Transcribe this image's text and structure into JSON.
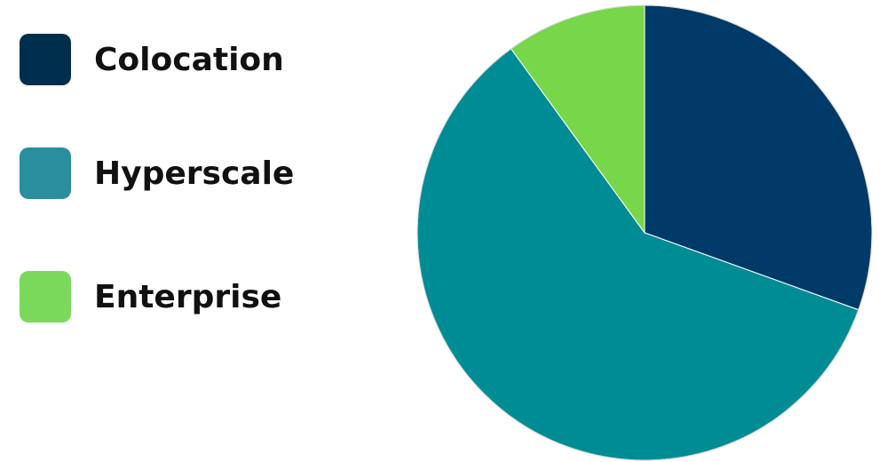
{
  "chart_data": {
    "type": "pie",
    "slices": [
      {
        "label": "Colocation",
        "value": 30.5,
        "color": "#003A68"
      },
      {
        "label": "Hyperscale",
        "value": 59.5,
        "color": "#008C95"
      },
      {
        "label": "Enterprise",
        "value": 10.0,
        "color": "#78D64B"
      }
    ],
    "legend_position": "left",
    "start_angle_deg": 0,
    "direction": "clockwise"
  },
  "legend": {
    "items": [
      {
        "label": "Colocation",
        "color": "#002F4D"
      },
      {
        "label": "Hyperscale",
        "color": "#2A8E9E"
      },
      {
        "label": "Enterprise",
        "color": "#7AD95A"
      }
    ]
  }
}
